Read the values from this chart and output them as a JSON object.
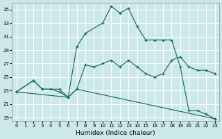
{
  "bg_color": "#cce8e8",
  "grid_color": "#ffffff",
  "line_color": "#1a6b6b",
  "xlabel": "Humidex (Indice chaleur)",
  "xlim": [
    -0.5,
    23.5
  ],
  "ylim": [
    18.5,
    36.0
  ],
  "yticks": [
    19,
    21,
    23,
    25,
    27,
    29,
    31,
    33,
    35
  ],
  "xticks": [
    0,
    1,
    2,
    3,
    4,
    5,
    6,
    7,
    8,
    9,
    10,
    11,
    12,
    13,
    14,
    15,
    16,
    17,
    18,
    19,
    20,
    21,
    22,
    23
  ],
  "line1_x": [
    0,
    2,
    3,
    4,
    5,
    6,
    7,
    8,
    10,
    11,
    12,
    13,
    14,
    15,
    16,
    17,
    18,
    19,
    20,
    21,
    22,
    23
  ],
  "line1_y": [
    22.8,
    24.5,
    23.2,
    23.2,
    23.2,
    22.0,
    29.5,
    31.5,
    33.0,
    35.5,
    34.5,
    35.2,
    32.5,
    30.5,
    30.5,
    30.5,
    30.5,
    26.5,
    20.0,
    20.0,
    19.5,
    18.8
  ],
  "line2_x": [
    0,
    2,
    3,
    4,
    5,
    6,
    7,
    8,
    9,
    10,
    11,
    12,
    13,
    14,
    15,
    16,
    17,
    18,
    19,
    20,
    21,
    22,
    23
  ],
  "line2_y": [
    22.8,
    24.5,
    23.2,
    23.2,
    22.8,
    22.0,
    23.2,
    26.8,
    26.5,
    27.0,
    27.5,
    26.5,
    27.5,
    26.5,
    25.5,
    25.0,
    25.5,
    27.5,
    28.0,
    26.5,
    26.0,
    26.0,
    25.5
  ],
  "line3_x": [
    0,
    6,
    7,
    23
  ],
  "line3_y": [
    22.8,
    22.0,
    23.2,
    18.8
  ]
}
